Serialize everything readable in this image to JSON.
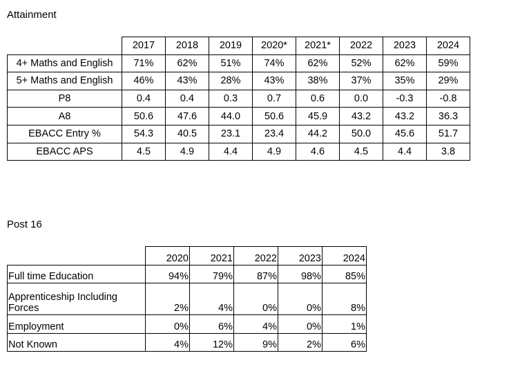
{
  "attainment": {
    "title": "Attainment",
    "years": [
      "2017",
      "2018",
      "2019",
      "2020*",
      "2021*",
      "2022",
      "2023",
      "2024"
    ],
    "rows": [
      {
        "label": "4+ Maths and English",
        "values": [
          "71%",
          "62%",
          "51%",
          "74%",
          "62%",
          "52%",
          "62%",
          "59%"
        ]
      },
      {
        "label": "5+ Maths and English",
        "values": [
          "46%",
          "43%",
          "28%",
          "43%",
          "38%",
          "37%",
          "35%",
          "29%"
        ]
      },
      {
        "label": "P8",
        "values": [
          "0.4",
          "0.4",
          "0.3",
          "0.7",
          "0.6",
          "0.0",
          "-0.3",
          "-0.8"
        ]
      },
      {
        "label": "A8",
        "values": [
          "50.6",
          "47.6",
          "44.0",
          "50.6",
          "45.9",
          "43.2",
          "43.2",
          "36.3"
        ]
      },
      {
        "label": "EBACC Entry %",
        "values": [
          "54.3",
          "40.5",
          "23.1",
          "23.4",
          "44.2",
          "50.0",
          "45.6",
          "51.7"
        ]
      },
      {
        "label": "EBACC APS",
        "values": [
          "4.5",
          "4.9",
          "4.4",
          "4.9",
          "4.6",
          "4.5",
          "4.4",
          "3.8"
        ]
      }
    ]
  },
  "post16": {
    "title": "Post 16",
    "years": [
      "2020",
      "2021",
      "2022",
      "2023",
      "2024"
    ],
    "rows": [
      {
        "label": "Full time Education",
        "values": [
          "94%",
          "79%",
          "87%",
          "98%",
          "85%"
        ]
      },
      {
        "label_line1": "Apprenticeship Including",
        "label_line2": "Forces",
        "values": [
          "2%",
          "4%",
          "0%",
          "0%",
          "8%"
        ]
      },
      {
        "label": "Employment",
        "values": [
          "0%",
          "6%",
          "4%",
          "0%",
          "1%"
        ]
      },
      {
        "label": "Not Known",
        "values": [
          "4%",
          "12%",
          "9%",
          "2%",
          "6%"
        ]
      }
    ]
  }
}
